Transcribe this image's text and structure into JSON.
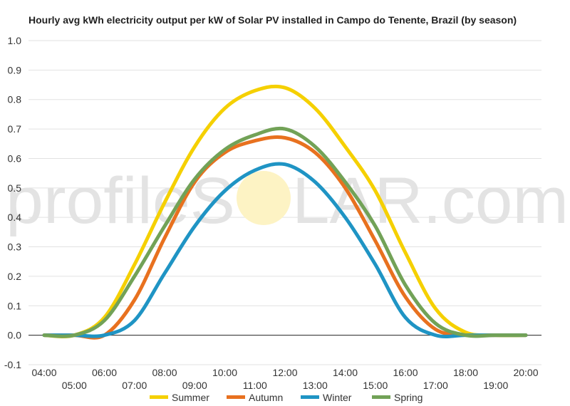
{
  "colors": {
    "summer": "#f5d000",
    "autumn": "#e8711f",
    "winter": "#1f94c4",
    "spring": "#72a257",
    "grid": "#e2e2e2",
    "zero_line": "#222222",
    "watermark_text": "#e3e3e3",
    "watermark_sun": "#fdf3c4"
  },
  "watermark": {
    "left": "profileS",
    "right": "LAR.com"
  },
  "chart_data": {
    "type": "line",
    "title": "Hourly avg kWh electricity output per kW of Solar PV installed in Campo do Tenente, Brazil (by season)",
    "xlabel": "",
    "ylabel": "",
    "x": [
      "04:00",
      "05:00",
      "06:00",
      "07:00",
      "08:00",
      "09:00",
      "10:00",
      "11:00",
      "12:00",
      "13:00",
      "14:00",
      "15:00",
      "16:00",
      "17:00",
      "18:00",
      "19:00",
      "20:00"
    ],
    "ylim": [
      -0.1,
      1.0
    ],
    "yticks": [
      "1.0",
      "0.9",
      "0.8",
      "0.7",
      "0.6",
      "0.5",
      "0.4",
      "0.3",
      "0.2",
      "0.1",
      "0.0",
      "-0.1"
    ],
    "grid": true,
    "legend_position": "bottom",
    "series": [
      {
        "name": "Summer",
        "color": "#f5d000",
        "values": [
          0.0,
          0.0,
          0.06,
          0.24,
          0.45,
          0.64,
          0.77,
          0.83,
          0.84,
          0.77,
          0.64,
          0.49,
          0.28,
          0.09,
          0.01,
          0.0,
          0.0
        ]
      },
      {
        "name": "Autumn",
        "color": "#e8711f",
        "values": [
          0.0,
          0.0,
          0.0,
          0.12,
          0.33,
          0.52,
          0.62,
          0.66,
          0.67,
          0.62,
          0.5,
          0.32,
          0.13,
          0.02,
          0.0,
          0.0,
          0.0
        ]
      },
      {
        "name": "Winter",
        "color": "#1f94c4",
        "values": [
          0.0,
          0.0,
          0.0,
          0.05,
          0.21,
          0.37,
          0.49,
          0.56,
          0.58,
          0.52,
          0.4,
          0.24,
          0.06,
          0.0,
          0.0,
          0.0,
          0.0
        ]
      },
      {
        "name": "Spring",
        "color": "#72a257",
        "values": [
          0.0,
          0.0,
          0.05,
          0.2,
          0.37,
          0.53,
          0.63,
          0.68,
          0.7,
          0.64,
          0.52,
          0.37,
          0.17,
          0.04,
          0.0,
          0.0,
          0.0
        ]
      }
    ]
  }
}
